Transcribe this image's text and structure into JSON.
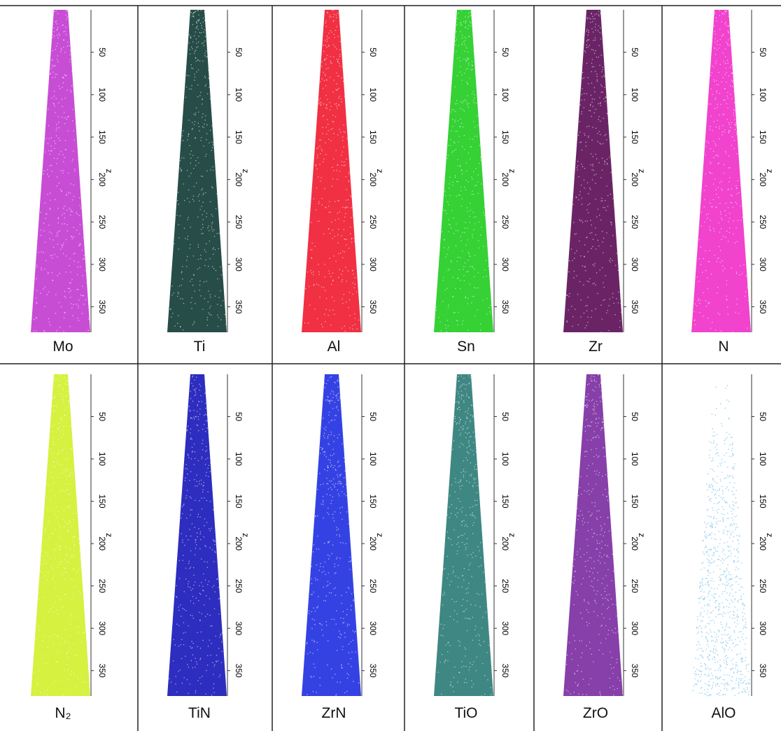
{
  "axis": {
    "label": "z",
    "lim": [
      0,
      380
    ],
    "ticks": [
      50,
      100,
      150,
      200,
      250,
      300,
      350
    ]
  },
  "panels": [
    {
      "label": "Mo",
      "color": "#c23ad0"
    },
    {
      "label": "Ti",
      "color": "#0f3a34"
    },
    {
      "label": "Al",
      "color": "#f0192f"
    },
    {
      "label": "Sn",
      "color": "#1fcc1f"
    },
    {
      "label": "Zr",
      "color": "#5a0c55"
    },
    {
      "label": "N",
      "color": "#f02fc8"
    },
    {
      "label": "N₂",
      "color": "#d2f02a"
    },
    {
      "label": "TiN",
      "color": "#1616b8"
    },
    {
      "label": "ZrN",
      "color": "#1f2ee0"
    },
    {
      "label": "TiO",
      "color": "#2a7a74"
    },
    {
      "label": "ZrO",
      "color": "#7a2aa0"
    },
    {
      "label": "AlO",
      "color": "#a9d8f2"
    }
  ]
}
